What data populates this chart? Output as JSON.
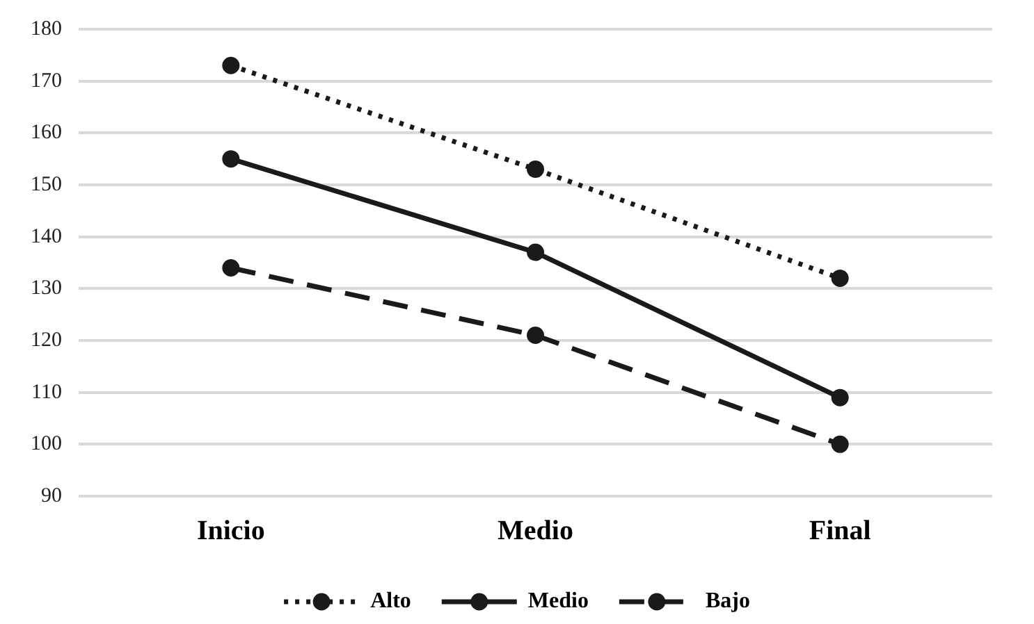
{
  "chart_data": {
    "type": "line",
    "categories": [
      "Inicio",
      "Medio",
      "Final"
    ],
    "series": [
      {
        "name": "Alto",
        "color": "#1a1a1a",
        "values": [
          173,
          153,
          132
        ],
        "line_style": "dotted"
      },
      {
        "name": "Medio",
        "color": "#1a1a1a",
        "values": [
          155,
          137,
          109
        ],
        "line_style": "solid"
      },
      {
        "name": "Bajo",
        "color": "#1a1a1a",
        "values": [
          134,
          121,
          100
        ],
        "line_style": "dashed"
      }
    ],
    "ylim": [
      90,
      180
    ],
    "yticks": [
      90,
      100,
      110,
      120,
      130,
      140,
      150,
      160,
      170,
      180
    ],
    "grid": "y",
    "legend": "bottom",
    "marker": "circle"
  }
}
